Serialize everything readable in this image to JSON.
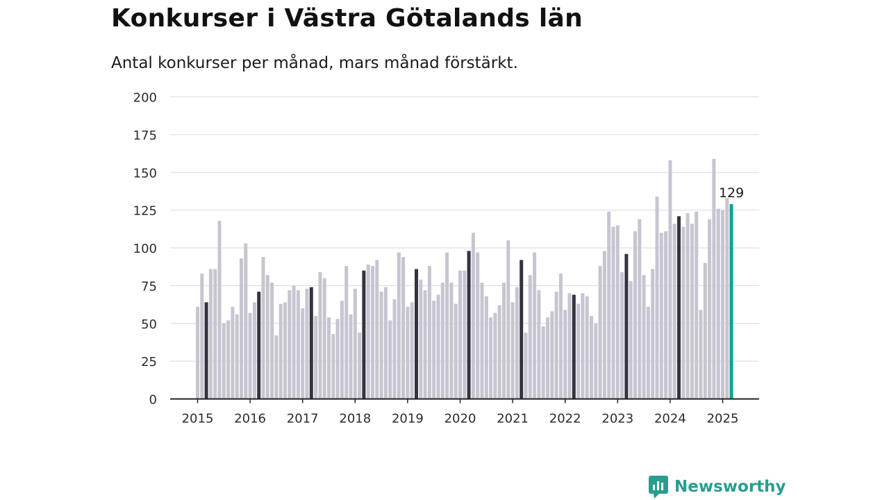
{
  "title": "Konkurser i Västra Götalands län",
  "subtitle": "Antal konkurser per månad, mars månad förstärkt.",
  "brand": {
    "name": "Newsworthy",
    "color": "#2a9d8f"
  },
  "chart_data": {
    "type": "bar",
    "title": "Konkurser i Västra Götalands län",
    "subtitle": "Antal konkurser per månad, mars månad förstärkt.",
    "xlabel": "",
    "ylabel": "",
    "ylim": [
      0,
      200
    ],
    "yticks": [
      0,
      25,
      50,
      75,
      100,
      125,
      150,
      175,
      200
    ],
    "xticks": [
      "2015",
      "2016",
      "2017",
      "2018",
      "2019",
      "2020",
      "2021",
      "2022",
      "2023",
      "2024",
      "2025"
    ],
    "grid": true,
    "colors": {
      "default": "#c6c5d0",
      "march": "#34333f",
      "latest": "#12a197"
    },
    "highlight_label": "129",
    "series": [
      {
        "values": [
          61,
          83,
          64,
          86,
          86,
          118,
          50,
          52,
          61,
          56,
          93,
          103,
          57,
          64,
          71,
          94,
          82,
          77,
          42,
          63,
          64,
          72,
          75,
          72,
          60,
          73,
          74,
          55,
          84,
          80,
          54,
          43,
          53,
          65,
          88,
          56,
          73,
          44,
          85,
          89,
          88,
          92,
          71,
          74,
          52,
          66,
          97,
          94,
          61,
          64,
          86,
          79,
          72,
          88,
          65,
          69,
          77,
          97,
          77,
          63,
          85,
          85,
          98,
          110,
          97,
          77,
          68,
          54,
          57,
          62,
          77,
          105,
          64,
          74,
          92,
          44,
          82,
          97,
          72,
          48,
          54,
          58,
          71,
          83,
          59,
          70,
          69,
          63,
          70,
          68,
          55,
          50,
          88,
          98,
          124,
          114,
          115,
          84,
          96,
          78,
          111,
          119,
          82,
          61,
          86,
          134,
          110,
          111,
          158,
          116,
          121,
          114,
          123,
          116,
          124,
          59,
          90,
          119,
          159,
          126,
          125,
          133,
          129
        ]
      }
    ]
  }
}
